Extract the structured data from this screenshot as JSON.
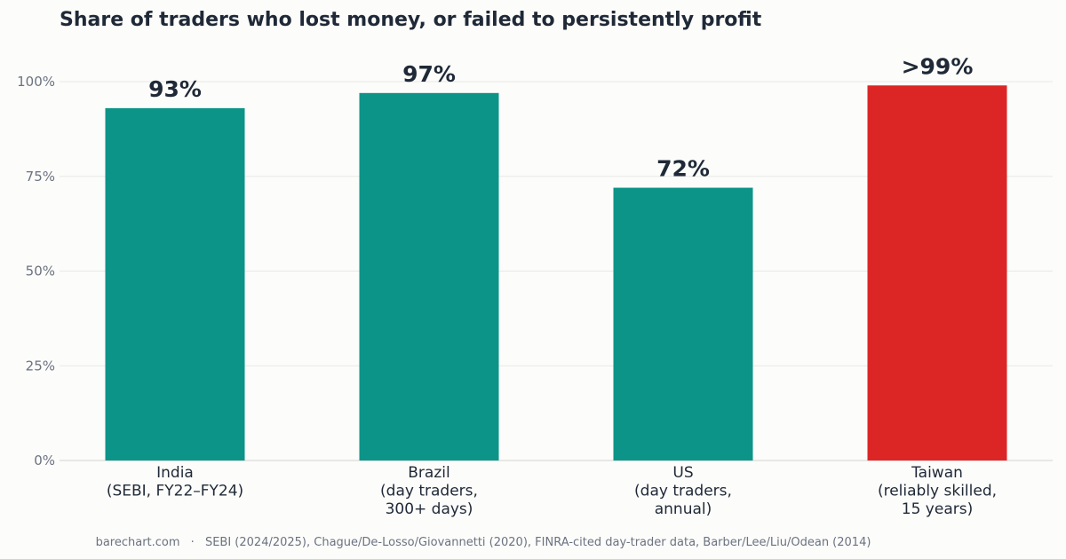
{
  "title": "Share of traders who lost money, or failed to persistently profit",
  "footer": {
    "site": "barechart.com",
    "separator": "·",
    "sources": "SEBI (2024/2025), Chague/De-Losso/Giovannetti (2020), FINRA-cited day-trader data, Barber/Lee/Liu/Odean (2014)"
  },
  "colors": {
    "default_bar": "#0d9488",
    "highlight_bar": "#dc2626",
    "grid": "#e8e8e6",
    "tick_text": "#6b7280",
    "label_text": "#1f2937"
  },
  "chart_data": {
    "type": "bar",
    "title": "Share of traders who lost money, or failed to persistently profit",
    "categories": [
      [
        "India",
        "(SEBI, FY22–FY24)"
      ],
      [
        "Brazil",
        "(day traders,",
        "300+ days)"
      ],
      [
        "US",
        "(day traders,",
        "annual)"
      ],
      [
        "Taiwan",
        "(reliably skilled,",
        "15 years)"
      ]
    ],
    "values": [
      93,
      97,
      72,
      99
    ],
    "data_labels": [
      "93%",
      "97%",
      "72%",
      ">99%"
    ],
    "highlight": [
      false,
      false,
      false,
      true
    ],
    "ylim": [
      0,
      100
    ],
    "yticks": [
      0,
      25,
      50,
      75,
      100
    ],
    "ytick_labels": [
      "0%",
      "25%",
      "50%",
      "75%",
      "100%"
    ],
    "grid": true,
    "xlabel": "",
    "ylabel": ""
  }
}
